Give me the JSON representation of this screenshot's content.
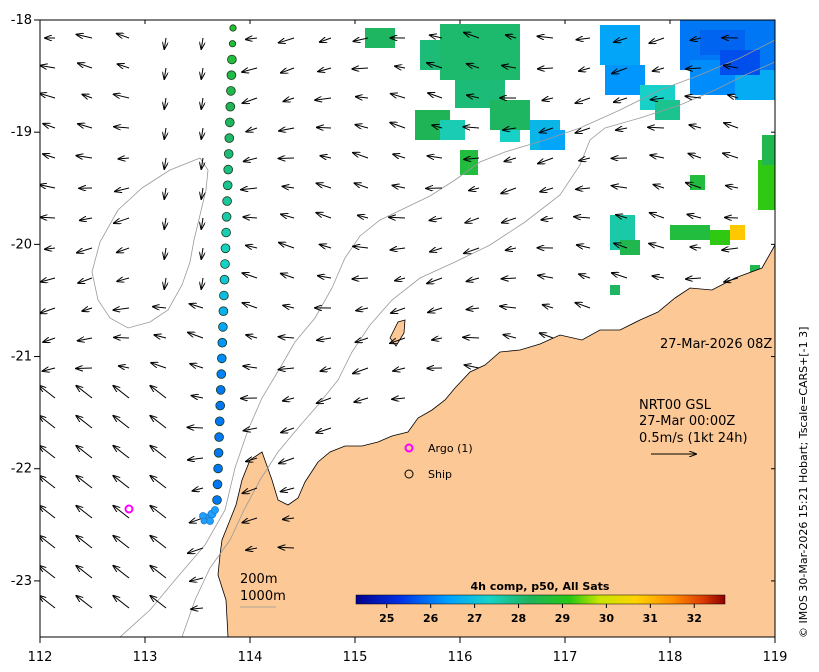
{
  "map": {
    "lon_range": [
      112,
      119
    ],
    "lat_range": [
      -23.5,
      -18
    ],
    "x_ticks": [
      "112",
      "113",
      "114",
      "115",
      "116",
      "117",
      "118",
      "119"
    ],
    "y_ticks": [
      "-18",
      "-19",
      "-20",
      "-21",
      "-22",
      "-23"
    ],
    "timestamp": "27-Mar-2026 08Z",
    "product_lines": [
      "NRT00 GSL",
      "27-Mar 00:00Z",
      "0.5m/s (1kt 24h)"
    ],
    "legend": {
      "argo": "Argo (1)",
      "ship": "Ship"
    },
    "isobaths": [
      "200m",
      "1000m"
    ],
    "colorbar": {
      "title": "4h comp, p50, All Sats",
      "labels": [
        "25",
        "26",
        "27",
        "28",
        "29",
        "30",
        "31",
        "32"
      ],
      "range": [
        24.3,
        32.7
      ]
    },
    "credit": "© IMOS 30-Mar-2026 15:21 Hobart; Tscale=CARS+[-1 3]",
    "colors": {
      "land": "#fcc896",
      "argo": "#ff00ff",
      "isobath": "#9a9a9a"
    },
    "track_sst": [
      28.8,
      28.7,
      28.6,
      28.5,
      28.4,
      28.3,
      28.2,
      28.1,
      28.0,
      27.9,
      27.8,
      27.7,
      27.6,
      27.5,
      27.4,
      27.3,
      27.1,
      26.9,
      26.7,
      26.5,
      26.3,
      26.2,
      26.1,
      26.0,
      26.0,
      26.0,
      26.0,
      26.0,
      26.0,
      26.0,
      26.0
    ]
  }
}
